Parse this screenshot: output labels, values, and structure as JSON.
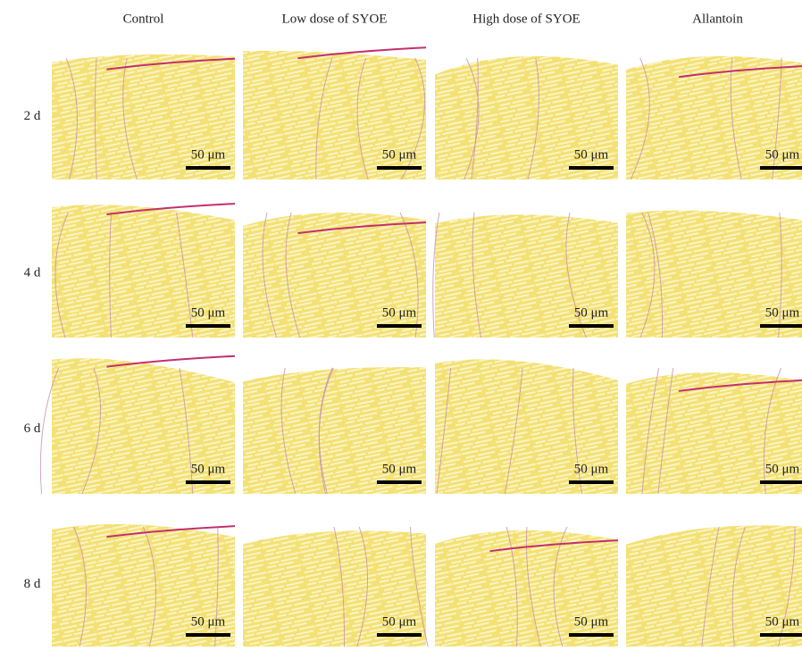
{
  "columns": [
    "Control",
    "Low dose of SYOE",
    "High dose of SYOE",
    "Allantoin"
  ],
  "rows": [
    "2 d",
    "4 d",
    "6 d",
    "8 d"
  ],
  "scale_bars": [
    [
      "50 μm",
      "50 μm",
      "50 μm",
      "50 μm"
    ],
    [
      "50 μm",
      "50 μm",
      "50 μm",
      "50 μm"
    ],
    [
      "50 μm",
      "50 μm",
      "50 μm",
      "50 μm"
    ],
    [
      "50 μm",
      "50 μm",
      "50 μm",
      "50 μm"
    ]
  ]
}
